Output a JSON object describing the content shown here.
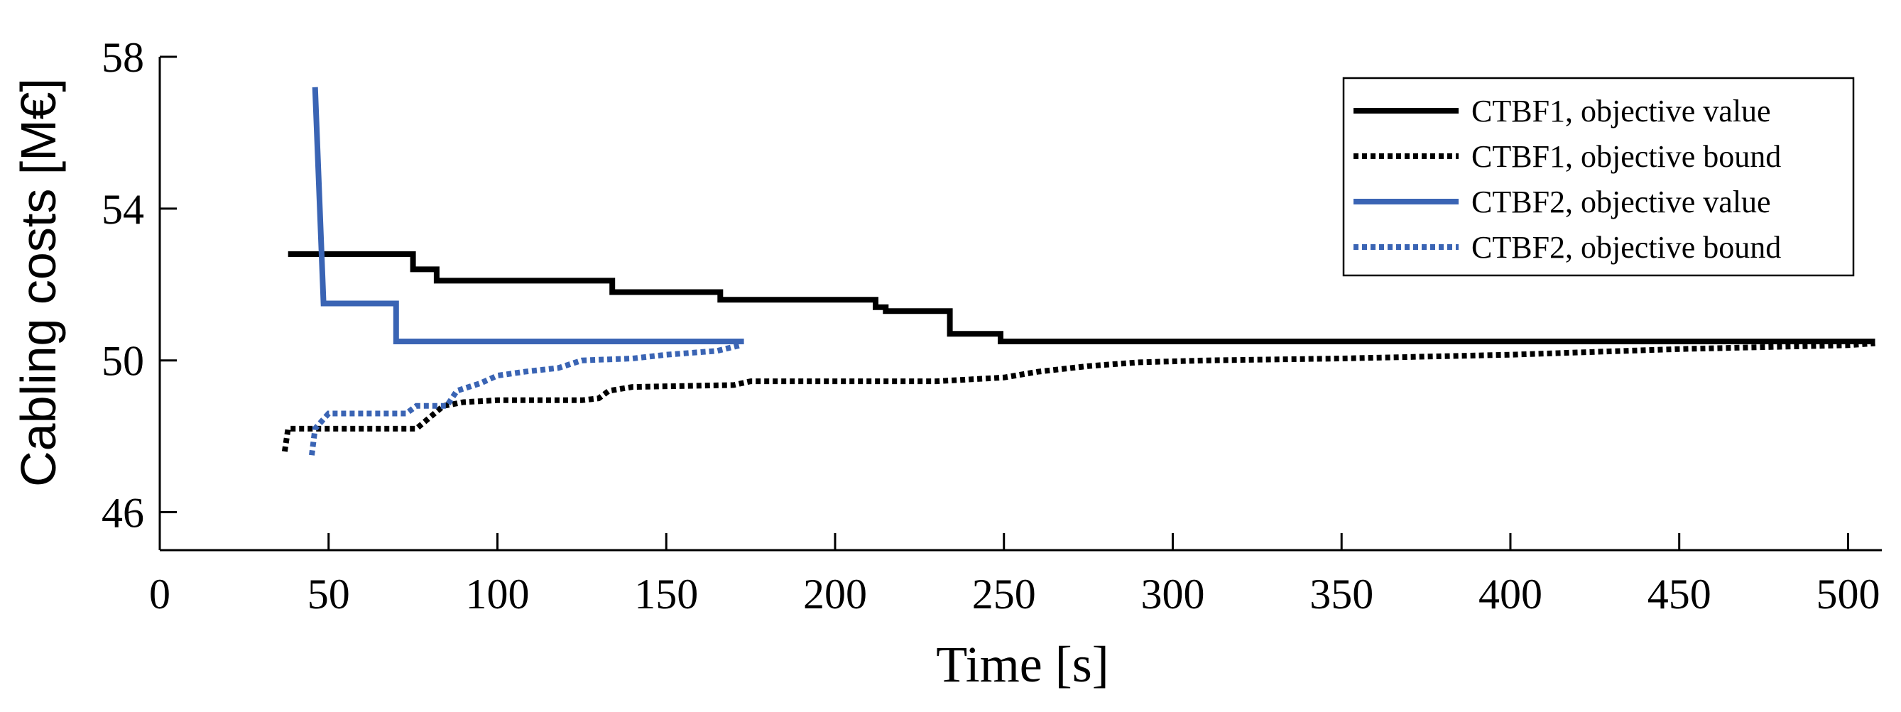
{
  "chart_data": {
    "type": "line",
    "title": "",
    "xlabel": "Time [s]",
    "ylabel": "Cabling costs [M€]",
    "xlim": [
      0,
      510
    ],
    "ylim": [
      45,
      58
    ],
    "xticks": [
      0,
      50,
      100,
      150,
      200,
      250,
      300,
      350,
      400,
      450,
      500
    ],
    "yticks": [
      46,
      50,
      54,
      58
    ],
    "grid": false,
    "legend_position": "top-right",
    "series": [
      {
        "name": "CTBF1, objective value",
        "color": "#000000",
        "style": "solid",
        "points": [
          [
            38,
            52.8
          ],
          [
            75,
            52.8
          ],
          [
            75,
            52.4
          ],
          [
            82,
            52.4
          ],
          [
            82,
            52.1
          ],
          [
            134,
            52.1
          ],
          [
            134,
            51.8
          ],
          [
            166,
            51.8
          ],
          [
            166,
            51.6
          ],
          [
            212,
            51.6
          ],
          [
            212,
            51.4
          ],
          [
            215,
            51.4
          ],
          [
            215,
            51.3
          ],
          [
            234,
            51.3
          ],
          [
            234,
            50.7
          ],
          [
            249,
            50.7
          ],
          [
            249,
            50.5
          ],
          [
            508,
            50.5
          ]
        ]
      },
      {
        "name": "CTBF1, objective bound",
        "color": "#000000",
        "style": "dotted",
        "points": [
          [
            37,
            47.6
          ],
          [
            38,
            48.2
          ],
          [
            70,
            48.2
          ],
          [
            76,
            48.2
          ],
          [
            80,
            48.5
          ],
          [
            84,
            48.8
          ],
          [
            90,
            48.9
          ],
          [
            100,
            48.95
          ],
          [
            125,
            48.95
          ],
          [
            130,
            49.0
          ],
          [
            133,
            49.2
          ],
          [
            140,
            49.3
          ],
          [
            170,
            49.35
          ],
          [
            175,
            49.45
          ],
          [
            200,
            49.45
          ],
          [
            230,
            49.45
          ],
          [
            250,
            49.55
          ],
          [
            260,
            49.7
          ],
          [
            275,
            49.85
          ],
          [
            290,
            49.95
          ],
          [
            310,
            50.0
          ],
          [
            350,
            50.05
          ],
          [
            400,
            50.15
          ],
          [
            450,
            50.3
          ],
          [
            500,
            50.4
          ],
          [
            508,
            50.45
          ]
        ]
      },
      {
        "name": "CTBF2, objective value",
        "color": "#3a64b4",
        "style": "solid",
        "points": [
          [
            46,
            57.2
          ],
          [
            48.5,
            51.5
          ],
          [
            70,
            51.5
          ],
          [
            70,
            50.5
          ],
          [
            173,
            50.5
          ]
        ]
      },
      {
        "name": "CTBF2, objective bound",
        "color": "#3a64b4",
        "style": "dotted",
        "points": [
          [
            45,
            47.5
          ],
          [
            46,
            48.2
          ],
          [
            48,
            48.4
          ],
          [
            50,
            48.6
          ],
          [
            60,
            48.6
          ],
          [
            73,
            48.6
          ],
          [
            76,
            48.8
          ],
          [
            85,
            48.8
          ],
          [
            88,
            49.2
          ],
          [
            95,
            49.4
          ],
          [
            100,
            49.6
          ],
          [
            108,
            49.7
          ],
          [
            118,
            49.8
          ],
          [
            125,
            50.0
          ],
          [
            140,
            50.05
          ],
          [
            150,
            50.15
          ],
          [
            165,
            50.25
          ],
          [
            172,
            50.4
          ]
        ]
      }
    ]
  }
}
